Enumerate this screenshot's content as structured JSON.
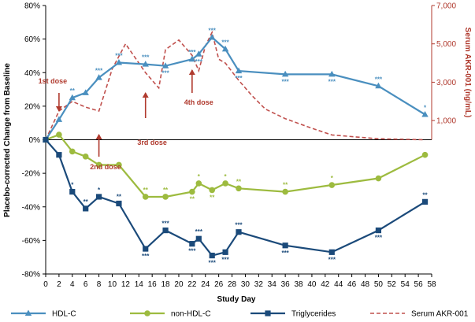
{
  "chart_data": {
    "type": "line",
    "xlabel": "Study Day",
    "ylabel": "Placebo-corrected Change from Baseline",
    "y2label": "Serum AKR-001 (ng/mL)",
    "xlim": [
      0,
      58
    ],
    "ylim": [
      -80,
      80
    ],
    "y2lim": [
      0,
      7000
    ],
    "x_ticks": [
      0,
      2,
      4,
      6,
      8,
      10,
      12,
      14,
      16,
      18,
      20,
      22,
      24,
      26,
      28,
      30,
      32,
      34,
      36,
      38,
      40,
      42,
      44,
      46,
      48,
      50,
      52,
      54,
      56,
      58
    ],
    "y_ticks": [
      80,
      60,
      40,
      20,
      0,
      -20,
      -40,
      -60,
      -80
    ],
    "y_tick_labels": [
      "80%",
      "60%",
      "40%",
      "20%",
      "0%",
      "-20%",
      "-40%",
      "-60%",
      "-80%"
    ],
    "y2_ticks": [
      7000,
      5000,
      3000,
      1000
    ],
    "y2_tick_labels": [
      "7,000",
      "5,000",
      "3,000",
      "1,000"
    ],
    "colors": {
      "hdl": "#4a8fbf",
      "nonhdl": "#9dbb3f",
      "trig": "#1b4a7a",
      "akr": "#c0504d",
      "dose": "#b03a2e",
      "axis": "#000000"
    },
    "series": [
      {
        "key": "hdl",
        "name": "HDL-C",
        "x": [
          0,
          2,
          4,
          6,
          8,
          11,
          15,
          18,
          22,
          23,
          25,
          27,
          29,
          36,
          43,
          50,
          57
        ],
        "values": [
          0,
          12,
          25,
          28,
          37,
          46,
          45,
          44,
          48,
          51,
          61,
          54,
          41,
          39,
          39,
          32,
          15
        ],
        "sig": [
          "",
          "",
          "**",
          "",
          "***",
          "***",
          "***",
          "***",
          "***",
          "***",
          "***",
          "***",
          "***",
          "***",
          "***",
          "***",
          "*"
        ],
        "sig_pos": [
          "",
          "",
          "above",
          "",
          "above",
          "above",
          "above",
          "below",
          "above",
          "below",
          "above",
          "above",
          "below",
          "below",
          "below",
          "above",
          "above"
        ]
      },
      {
        "key": "nonhdl",
        "name": "non-HDL-C",
        "x": [
          0,
          2,
          4,
          6,
          8,
          11,
          15,
          18,
          22,
          23,
          25,
          27,
          29,
          36,
          43,
          50,
          57
        ],
        "values": [
          0,
          3,
          -7,
          -10,
          -15,
          -15,
          -34,
          -34,
          -31,
          -26,
          -30,
          -26,
          -29,
          -31,
          -27,
          -23,
          -9
        ],
        "sig": [
          "",
          "",
          "",
          "",
          "",
          "",
          "**",
          "**",
          "**",
          "*",
          "**",
          "*",
          "**",
          "**",
          "*",
          "",
          ""
        ],
        "sig_pos": [
          "",
          "",
          "",
          "",
          "",
          "",
          "above",
          "above",
          "below",
          "above",
          "below",
          "above",
          "above",
          "above",
          "above",
          "",
          ""
        ]
      },
      {
        "key": "trig",
        "name": "Triglycerides",
        "x": [
          0,
          2,
          4,
          6,
          8,
          11,
          15,
          18,
          22,
          23,
          25,
          27,
          29,
          36,
          43,
          50,
          57
        ],
        "values": [
          0,
          -9,
          -31,
          -41,
          -34,
          -38,
          -65,
          -54,
          -62,
          -59,
          -69,
          -67,
          -55,
          -63,
          -67,
          -54,
          -37
        ],
        "sig": [
          "",
          "",
          "*",
          "**",
          "*",
          "**",
          "***",
          "***",
          "***",
          "***",
          "***",
          "***",
          "***",
          "***",
          "***",
          "***",
          "**"
        ],
        "sig_pos": [
          "",
          "",
          "above",
          "above",
          "above",
          "above",
          "below",
          "above",
          "below",
          "above",
          "below",
          "below",
          "above",
          "below",
          "below",
          "below",
          "above"
        ]
      },
      {
        "key": "akr",
        "name": "Serum AKR-001",
        "axis": "right",
        "x": [
          0,
          2,
          4,
          6,
          8,
          10,
          12,
          15,
          17,
          18,
          20,
          22,
          23,
          24,
          25,
          26,
          27,
          29,
          31,
          33,
          36,
          40,
          43,
          50,
          57
        ],
        "values": [
          0,
          1500,
          2000,
          1700,
          1500,
          3700,
          5000,
          3500,
          2700,
          4700,
          5200,
          4400,
          3600,
          4900,
          5600,
          4200,
          4000,
          3100,
          2300,
          1600,
          1100,
          600,
          250,
          50,
          0
        ]
      }
    ],
    "annotations": [
      {
        "label": "1st dose",
        "x": 2,
        "arrow": "down"
      },
      {
        "label": "2nd dose",
        "x": 8,
        "arrow": "up"
      },
      {
        "label": "3rd dose",
        "x": 15,
        "arrow": "up"
      },
      {
        "label": "4th dose",
        "x": 22,
        "arrow": "up"
      }
    ],
    "legend": {
      "position": "bottom",
      "items": [
        "HDL-C",
        "non-HDL-C",
        "Triglycerides",
        "Serum AKR-001"
      ]
    }
  }
}
